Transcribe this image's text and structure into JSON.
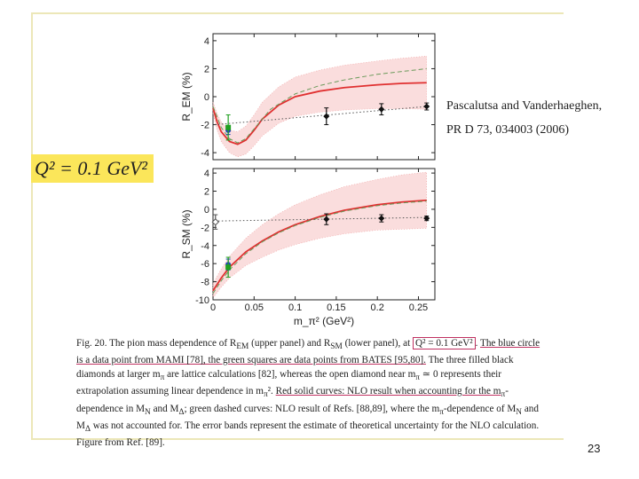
{
  "slide": {
    "q2_label": "Q² = 0.1 GeV²",
    "reference_line1": "Pascalutsa and Vanderhaeghen,",
    "reference_line2": "PR D 73, 034003 (2006)",
    "page_number": "23"
  },
  "caption": {
    "part1": "Fig. 20. The pion mass dependence of R",
    "rem_sub": "EM",
    "part2": " (upper panel) and R",
    "rsm_sub": "SM",
    "part3": " (lower panel), at ",
    "q2_highlight": "Q² = 0.1 GeV²",
    "part4": ". ",
    "line2_ul": "The blue circle is a data point from MAMI [78], the green squares are data points from BATES [95,80].",
    "line3": " The three filled black diamonds at larger m",
    "line3b": " are lattice calculations [82], whereas the open diamond near m",
    "line3c": " ≃ 0 represents their extrapolation assuming linear dependence in m",
    "line3d": "². ",
    "red_ul": "Red solid curves: NLO result when accounting for the m",
    "line4": "-dependence in M",
    "line4b": " and M",
    "line4c": "; green dashed curves: NLO result of Refs. [88,89], where the m",
    "line4d": "-dependence of M",
    "line4e": " and M",
    "line4f": " was not accounted for. The error bands represent the estimate of theoretical uncertainty for the NLO calculation. Figure from Ref. [89]."
  },
  "chart_data": [
    {
      "type": "line",
      "panel": "upper",
      "ylabel": "R_EM (%)",
      "xlabel": "",
      "xlim": [
        0,
        0.27
      ],
      "ylim": [
        -4.5,
        4.5
      ],
      "xticks": [
        0,
        0.05,
        0.1,
        0.15,
        0.2,
        0.25
      ],
      "yticks": [
        -4,
        -2,
        0,
        2,
        4
      ],
      "ytick_labels": [
        "-4",
        "-2",
        "0",
        "2",
        "4"
      ],
      "series": [
        {
          "role": "red solid curve (NLO)",
          "color": "#e03030",
          "x": [
            0,
            0.005,
            0.01,
            0.02,
            0.03,
            0.04,
            0.05,
            0.06,
            0.08,
            0.1,
            0.13,
            0.16,
            0.2,
            0.23,
            0.26
          ],
          "y": [
            -0.8,
            -1.8,
            -2.5,
            -3.2,
            -3.4,
            -3.1,
            -2.4,
            -1.6,
            -0.6,
            0.0,
            0.4,
            0.65,
            0.85,
            0.95,
            1.0
          ],
          "band": [
            0.4,
            0.6,
            0.7,
            0.8,
            0.9,
            1.0,
            1.1,
            1.2,
            1.3,
            1.4,
            1.5,
            1.6,
            1.7,
            1.8,
            1.9
          ]
        },
        {
          "role": "green dashed curve",
          "color": "#6a9a5a",
          "x": [
            0,
            0.01,
            0.02,
            0.03,
            0.04,
            0.05,
            0.07,
            0.1,
            0.13,
            0.16,
            0.2,
            0.23,
            0.26
          ],
          "y": [
            -0.7,
            -2.2,
            -3.0,
            -3.3,
            -3.0,
            -2.3,
            -0.9,
            0.2,
            0.8,
            1.2,
            1.6,
            1.8,
            2.0
          ]
        },
        {
          "role": "extrapolation (dotted)",
          "color": "#555555",
          "x": [
            0.002,
            0.26
          ],
          "y": [
            -2.0,
            -0.7
          ]
        }
      ],
      "points": [
        {
          "label": "MAMI",
          "marker": "circle",
          "color": "#2040c0",
          "x": 0.0185,
          "y": -2.4,
          "err": 0.3
        },
        {
          "label": "BATES",
          "marker": "square",
          "color": "#20a020",
          "x": 0.0185,
          "y": -2.2,
          "err": 0.9
        },
        {
          "label": "lattice",
          "marker": "diamond",
          "color": "#111111",
          "x": 0.138,
          "y": -1.4,
          "err": 0.6
        },
        {
          "label": "lattice",
          "marker": "diamond",
          "color": "#111111",
          "x": 0.205,
          "y": -0.9,
          "err": 0.4
        },
        {
          "label": "lattice",
          "marker": "diamond",
          "color": "#111111",
          "x": 0.26,
          "y": -0.7,
          "err": 0.25
        }
      ]
    },
    {
      "type": "line",
      "panel": "lower",
      "ylabel": "R_SM (%)",
      "xlabel": "m_π² (GeV²)",
      "xlim": [
        0,
        0.27
      ],
      "ylim": [
        -10,
        4.5
      ],
      "xticks": [
        0,
        0.05,
        0.1,
        0.15,
        0.2,
        0.25
      ],
      "xtick_labels": [
        "0",
        "0.05",
        "0.1",
        "0.15",
        "0.2",
        "0.25"
      ],
      "yticks": [
        -10,
        -8,
        -6,
        -4,
        -2,
        0,
        2,
        4
      ],
      "ytick_labels": [
        "-10",
        "-8",
        "-6",
        "-4",
        "-2",
        "0",
        "2",
        "4"
      ],
      "series": [
        {
          "role": "red solid curve (NLO)",
          "color": "#e03030",
          "x": [
            0,
            0.01,
            0.02,
            0.04,
            0.06,
            0.08,
            0.1,
            0.13,
            0.16,
            0.2,
            0.23,
            0.26
          ],
          "y": [
            -9.0,
            -7.6,
            -6.4,
            -4.7,
            -3.5,
            -2.5,
            -1.7,
            -0.8,
            -0.1,
            0.5,
            0.8,
            1.0
          ],
          "band": [
            0.8,
            1.0,
            1.2,
            1.5,
            1.8,
            2.0,
            2.2,
            2.4,
            2.6,
            2.8,
            3.0,
            3.1
          ]
        },
        {
          "role": "green dashed curve",
          "color": "#6a9a5a",
          "x": [
            0,
            0.01,
            0.02,
            0.04,
            0.06,
            0.08,
            0.1,
            0.13,
            0.16,
            0.2,
            0.23,
            0.26
          ],
          "y": [
            -9.3,
            -7.9,
            -6.7,
            -4.9,
            -3.6,
            -2.6,
            -1.8,
            -0.9,
            -0.2,
            0.4,
            0.7,
            0.9
          ]
        },
        {
          "role": "extrapolation (dotted)",
          "color": "#555555",
          "x": [
            0.002,
            0.26
          ],
          "y": [
            -1.3,
            -0.9
          ]
        }
      ],
      "points": [
        {
          "label": "extrapolation",
          "marker": "open-diamond",
          "color": "#555555",
          "x": 0.003,
          "y": -1.4,
          "err": 0.8
        },
        {
          "label": "MAMI",
          "marker": "circle",
          "color": "#2040c0",
          "x": 0.0185,
          "y": -6.1,
          "err": 0.6
        },
        {
          "label": "BATES",
          "marker": "square",
          "color": "#20a020",
          "x": 0.0185,
          "y": -6.4,
          "err": 1.1
        },
        {
          "label": "lattice",
          "marker": "diamond",
          "color": "#111111",
          "x": 0.138,
          "y": -1.1,
          "err": 0.6
        },
        {
          "label": "lattice",
          "marker": "diamond",
          "color": "#111111",
          "x": 0.205,
          "y": -1.0,
          "err": 0.4
        },
        {
          "label": "lattice",
          "marker": "diamond",
          "color": "#111111",
          "x": 0.26,
          "y": -1.0,
          "err": 0.25
        }
      ]
    }
  ]
}
